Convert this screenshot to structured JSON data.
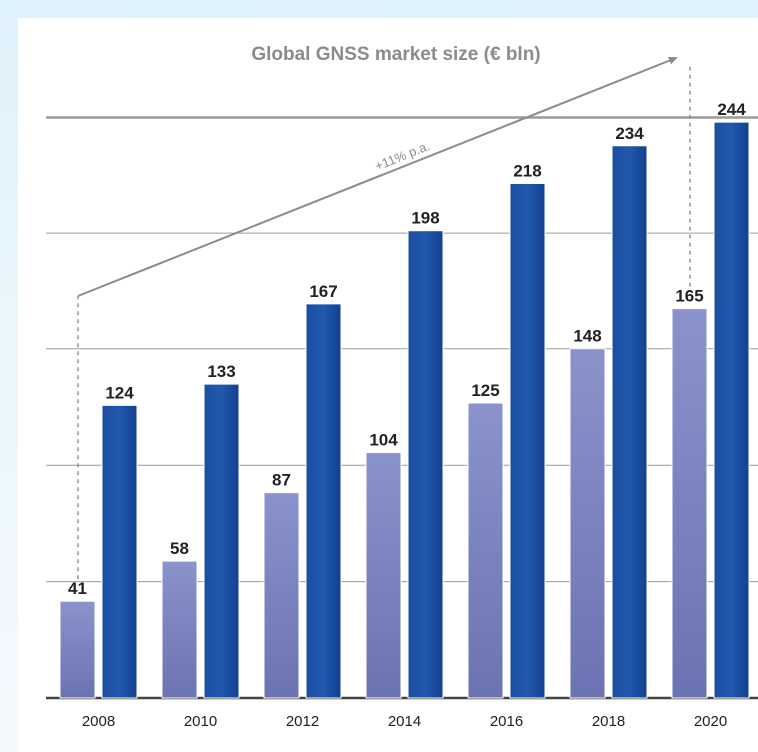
{
  "chart_data": {
    "type": "bar",
    "title": "Global GNSS market size (€ bln)",
    "categories": [
      "2008",
      "2010",
      "2012",
      "2014",
      "2016",
      "2018",
      "2020"
    ],
    "series": [
      {
        "values": [
          41,
          58,
          87,
          104,
          125,
          148,
          165
        ],
        "color": "#8b93cc"
      },
      {
        "values": [
          124,
          133,
          167,
          198,
          218,
          234,
          244
        ],
        "color": "#1b4ea3"
      }
    ],
    "ylim": [
      0,
      245
    ],
    "grid": true,
    "gridlines": [
      0,
      49.3,
      98.6,
      148,
      197,
      246
    ],
    "annotation": "+11% p.a."
  },
  "colors": {
    "light_bar": "#8b93cc",
    "dark_bar": "#1b4ea3",
    "title": "#8b8b8b",
    "grid": "#9b9b9b",
    "arrow": "#8b8b8b",
    "background": "#e2f3fb"
  }
}
